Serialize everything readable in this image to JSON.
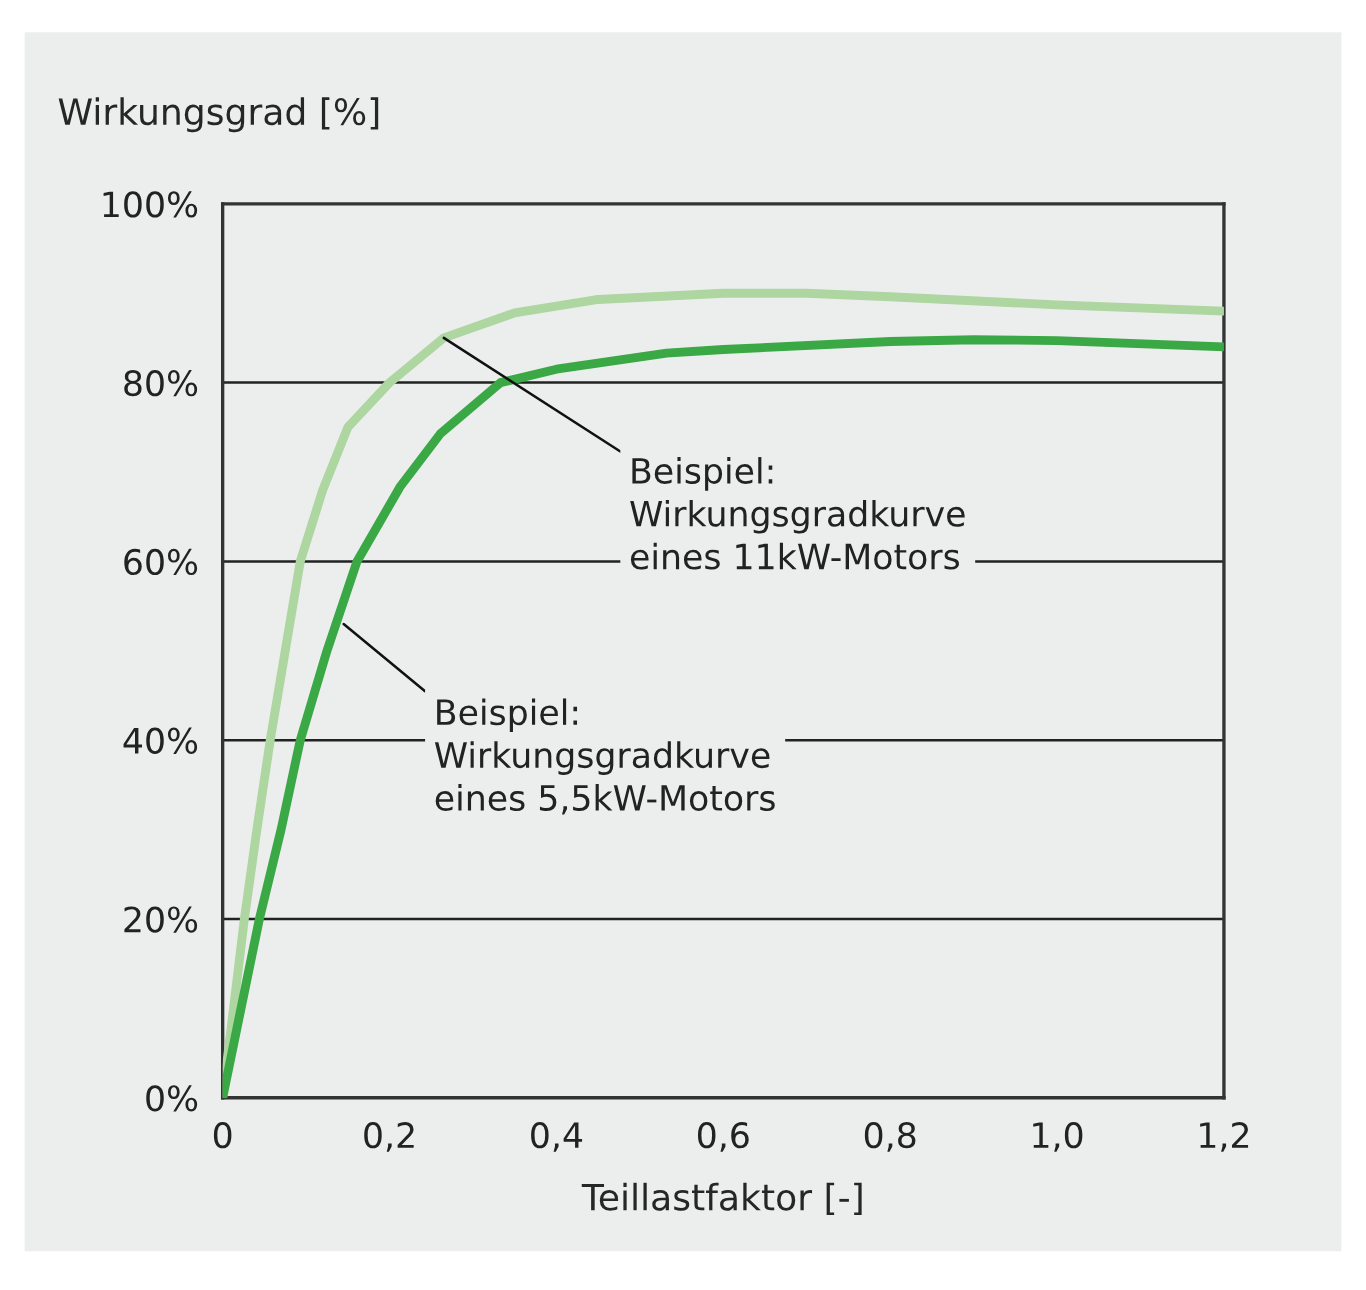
{
  "chart_data": {
    "type": "line",
    "ylabel": "Wirkungsgrad [%]",
    "xlabel": "Teillastfaktor [-]",
    "series": [
      {
        "color": "#aed6a0",
        "x": [
          0,
          0.026,
          0.041,
          0.057,
          0.075,
          0.093,
          0.12,
          0.15,
          0.2,
          0.265,
          0.35,
          0.45,
          0.6,
          0.7,
          0.8,
          1.0,
          1.2
        ],
        "values": [
          0,
          20,
          30,
          40,
          50,
          60,
          68,
          75,
          80,
          85,
          87.8,
          89.3,
          90,
          90,
          89.6,
          88.7,
          88
        ]
      },
      {
        "color": "#3aa845",
        "x": [
          0,
          0.044,
          0.07,
          0.093,
          0.125,
          0.161,
          0.213,
          0.261,
          0.333,
          0.4,
          0.532,
          0.6,
          0.8,
          0.9,
          1.0,
          1.2
        ],
        "values": [
          0,
          20,
          30,
          40,
          50,
          60,
          68.4,
          74.3,
          80,
          81.5,
          83.3,
          83.7,
          84.6,
          84.8,
          84.7,
          84
        ]
      }
    ],
    "annotations": [
      {
        "text": "Beispiel:\nWirkungsgradkurve\neines 11kW-Motors",
        "x": 0.265,
        "y": 85
      },
      {
        "text": "Beispiel:\nWirkungsgradkurve\neines 5,5kW-Motors",
        "x": 0.145,
        "y": 53
      }
    ],
    "xlim": [
      0,
      1.2
    ],
    "ylim": [
      0,
      100
    ],
    "xticks": [
      0,
      {
        "value": 0.2,
        "label": "0,2"
      },
      {
        "value": 0.4,
        "label": "0,4"
      },
      {
        "value": 0.6,
        "label": "0,6"
      },
      {
        "value": 0.8,
        "label": "0,8"
      },
      {
        "value": 1.0,
        "label": "1,0"
      },
      {
        "value": 1.2,
        "label": "1,2"
      }
    ],
    "yticks": [
      {
        "value": 0,
        "label": "0%"
      },
      {
        "value": 20,
        "label": "20%"
      },
      {
        "value": 40,
        "label": "40%"
      },
      {
        "value": 60,
        "label": "60%"
      },
      {
        "value": 80,
        "label": "80%"
      },
      {
        "value": 100,
        "label": "100%"
      }
    ],
    "grid": "y",
    "marker": "none",
    "line_style": "solid"
  }
}
